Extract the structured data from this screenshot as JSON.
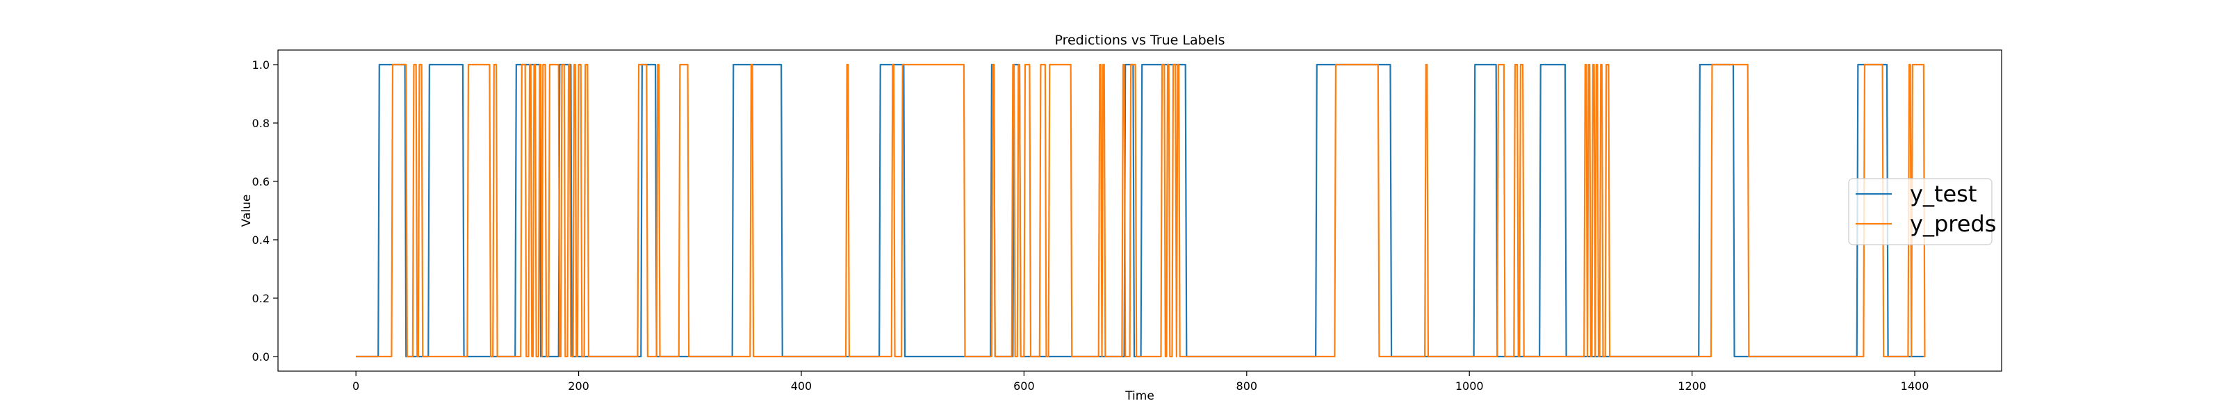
{
  "chart_data": {
    "type": "line",
    "title": "Predictions vs True Labels",
    "xlabel": "Time",
    "ylabel": "Value",
    "xlim": [
      -70,
      1478
    ],
    "ylim": [
      -0.05,
      1.05
    ],
    "xticks": [
      0,
      200,
      400,
      600,
      800,
      1000,
      1200,
      1400
    ],
    "xtick_labels": [
      "0",
      "200",
      "400",
      "600",
      "800",
      "1000",
      "1200",
      "1400"
    ],
    "yticks": [
      0.0,
      0.2,
      0.4,
      0.6,
      0.8,
      1.0
    ],
    "ytick_labels": [
      "0.0",
      "0.2",
      "0.4",
      "0.6",
      "0.8",
      "1.0"
    ],
    "grid": false,
    "legend_position": "center-right",
    "series": [
      {
        "name": "y_test",
        "color": "#1f77b4",
        "x_max": 1408,
        "high_intervals": [
          [
            20,
            44
          ],
          [
            65,
            96
          ],
          [
            143,
            165
          ],
          [
            182,
            193
          ],
          [
            256,
            269
          ],
          [
            338,
            382
          ],
          [
            470,
            492
          ],
          [
            570,
            573
          ],
          [
            590,
            596
          ],
          [
            690,
            698
          ],
          [
            705,
            745
          ],
          [
            862,
            929
          ],
          [
            1004,
            1024
          ],
          [
            1063,
            1086
          ],
          [
            1206,
            1237
          ],
          [
            1348,
            1375
          ]
        ]
      },
      {
        "name": "y_preds",
        "color": "#ff7f0e",
        "x_max": 1408,
        "high_intervals": [
          [
            32,
            45
          ],
          [
            51,
            54
          ],
          [
            56,
            59
          ],
          [
            100,
            120
          ],
          [
            123,
            126
          ],
          [
            148,
            152
          ],
          [
            155,
            157
          ],
          [
            159,
            161
          ],
          [
            164,
            166
          ],
          [
            167,
            170
          ],
          [
            173,
            182
          ],
          [
            184,
            187
          ],
          [
            190,
            192
          ],
          [
            195,
            197
          ],
          [
            199,
            202
          ],
          [
            205,
            208
          ],
          [
            253,
            261
          ],
          [
            270,
            272
          ],
          [
            290,
            298
          ],
          [
            354,
            356
          ],
          [
            440,
            442
          ],
          [
            481,
            483
          ],
          [
            490,
            546
          ],
          [
            571,
            573
          ],
          [
            589,
            591
          ],
          [
            594,
            596
          ],
          [
            600,
            605
          ],
          [
            614,
            619
          ],
          [
            622,
            642
          ],
          [
            667,
            669
          ],
          [
            670,
            672
          ],
          [
            688,
            690
          ],
          [
            695,
            700
          ],
          [
            723,
            726
          ],
          [
            728,
            730
          ],
          [
            733,
            736
          ],
          [
            737,
            739
          ],
          [
            879,
            918
          ],
          [
            960,
            962
          ],
          [
            1025,
            1031
          ],
          [
            1040,
            1043
          ],
          [
            1045,
            1048
          ],
          [
            1103,
            1105
          ],
          [
            1106,
            1108
          ],
          [
            1110,
            1112
          ],
          [
            1113,
            1115
          ],
          [
            1117,
            1119
          ],
          [
            1122,
            1125
          ],
          [
            1217,
            1250
          ],
          [
            1354,
            1371
          ],
          [
            1394,
            1396
          ],
          [
            1397,
            1408
          ]
        ]
      }
    ]
  }
}
